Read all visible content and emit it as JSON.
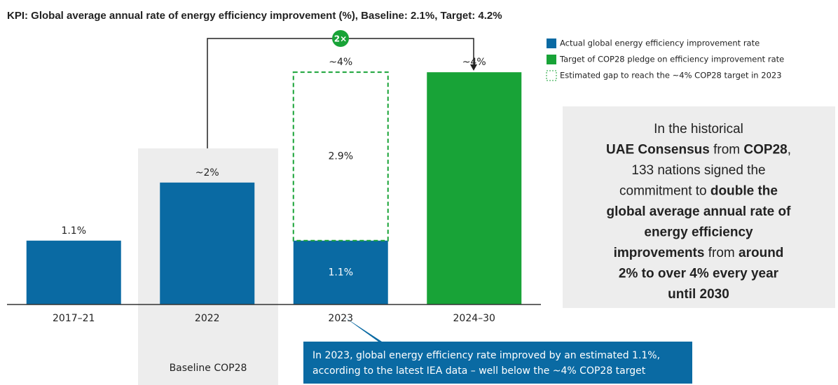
{
  "chart_data": {
    "type": "bar",
    "stacked": true,
    "title": "KPI: Global average annual rate of energy efficiency improvement (%), Baseline: 2.1%, Target: 4.2%",
    "categories": [
      "2017–21",
      "2022",
      "2023",
      "2024–30"
    ],
    "series": [
      {
        "name": "Actual global energy efficiency improvement rate",
        "color": "#0a6aa3",
        "values": [
          1.1,
          2.1,
          1.1,
          null
        ],
        "value_labels": [
          "1.1%",
          "~2%",
          "1.1%",
          null
        ]
      },
      {
        "name": "Target of COP28 pledge on efficiency improvement rate",
        "color": "#18a337",
        "values": [
          null,
          null,
          null,
          4
        ],
        "value_labels": [
          null,
          null,
          null,
          "~4%"
        ]
      },
      {
        "name": "Estimated gap to reach the ~4% COP28 target in 2023",
        "color": "#18a337",
        "style": "dashed",
        "values": [
          null,
          null,
          2.9,
          null
        ],
        "value_labels": [
          null,
          null,
          "2.9%",
          null
        ]
      }
    ],
    "stack_total_labels": [
      null,
      null,
      "~4%",
      null
    ],
    "ylim": [
      0,
      4.4
    ],
    "legend": "top-right",
    "annotations": {
      "multiplier": "2×",
      "baseline_label": "Baseline COP28",
      "callout": [
        "In 2023, global energy efficiency rate improved by an estimated 1.1%,",
        "according to the latest IEA data – well below the ~4% COP28 target"
      ],
      "text_box": [
        [
          {
            "text": "In the historical",
            "bold": false
          }
        ],
        [
          {
            "text": "UAE Consensus",
            "bold": true
          },
          {
            "text": " from ",
            "bold": false
          },
          {
            "text": "COP28",
            "bold": true
          },
          {
            "text": ",",
            "bold": false
          }
        ],
        [
          {
            "text": "133 nations signed the",
            "bold": false
          }
        ],
        [
          {
            "text": "commitment to ",
            "bold": false
          },
          {
            "text": "double the",
            "bold": true
          }
        ],
        [
          {
            "text": "global average annual rate of",
            "bold": true
          }
        ],
        [
          {
            "text": "energy efficiency",
            "bold": true
          }
        ],
        [
          {
            "text": "improvements",
            "bold": true
          },
          {
            "text": " from ",
            "bold": false
          },
          {
            "text": "around",
            "bold": true
          }
        ],
        [
          {
            "text": "2% to over 4% every year",
            "bold": true
          }
        ],
        [
          {
            "text": "until 2030",
            "bold": true
          }
        ]
      ]
    }
  }
}
